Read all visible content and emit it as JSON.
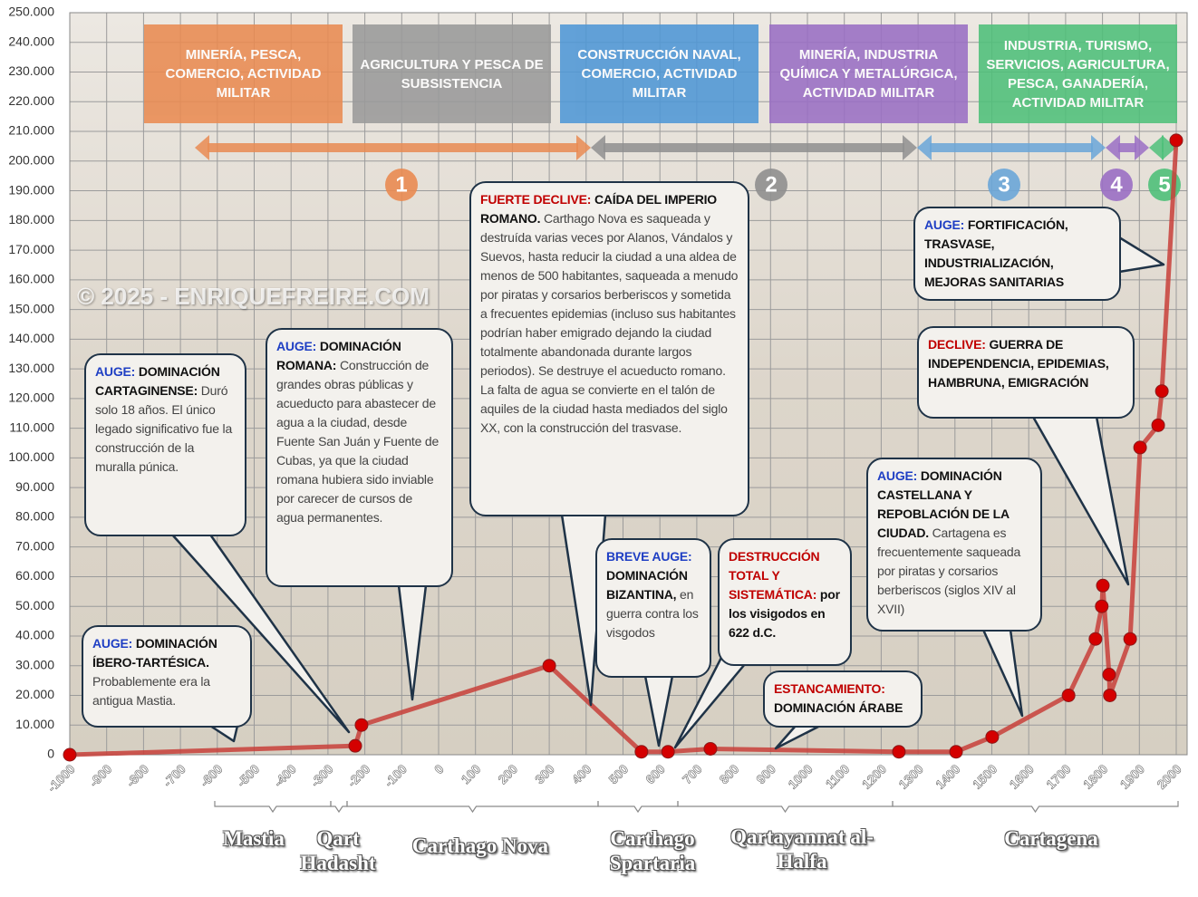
{
  "chart_data": {
    "type": "line",
    "x": [
      -1000,
      -226,
      -209,
      300,
      550,
      622,
      737,
      1248,
      1403,
      1501,
      1708,
      1781,
      1798,
      1801,
      1818,
      1820,
      1875,
      1902,
      1951,
      1961,
      2000
    ],
    "values": [
      0,
      3000,
      10000,
      30000,
      1000,
      1000,
      2000,
      1000,
      1000,
      6000,
      20000,
      39000,
      50000,
      57000,
      27000,
      20000,
      39000,
      103500,
      111000,
      122500,
      207000
    ],
    "color": "#c8403a",
    "xlim": [
      -1000,
      2000
    ],
    "xticks": [
      -1000,
      -900,
      -800,
      -700,
      -600,
      -500,
      -400,
      -300,
      -200,
      -100,
      0,
      100,
      200,
      300,
      400,
      500,
      600,
      700,
      800,
      900,
      1000,
      1100,
      1200,
      1300,
      1400,
      1500,
      1600,
      1700,
      1800,
      1900,
      2000
    ],
    "ylim": [
      0,
      250000
    ],
    "yticks": [
      0,
      {
        "value": 10000,
        "label": "10.000"
      },
      {
        "value": 20000,
        "label": "20.000"
      },
      {
        "value": 30000,
        "label": "30.000"
      },
      {
        "value": 40000,
        "label": "40.000"
      },
      {
        "value": 50000,
        "label": "50.000"
      },
      {
        "value": 60000,
        "label": "60.000"
      },
      {
        "value": 70000,
        "label": "70.000"
      },
      {
        "value": 80000,
        "label": "80.000"
      },
      {
        "value": 90000,
        "label": "90.000"
      },
      {
        "value": 100000,
        "label": "100.000"
      },
      {
        "value": 110000,
        "label": "110.000"
      },
      {
        "value": 120000,
        "label": "120.000"
      },
      {
        "value": 130000,
        "label": "130.000"
      },
      {
        "value": 140000,
        "label": "140.000"
      },
      {
        "value": 150000,
        "label": "150.000"
      },
      {
        "value": 160000,
        "label": "160.000"
      },
      {
        "value": 170000,
        "label": "170.000"
      },
      {
        "value": 180000,
        "label": "180.000"
      },
      {
        "value": 190000,
        "label": "190.000"
      },
      {
        "value": 200000,
        "label": "200.000"
      },
      {
        "value": 210000,
        "label": "210.000"
      },
      {
        "value": 220000,
        "label": "220.000"
      },
      {
        "value": 230000,
        "label": "230.000"
      },
      {
        "value": 240000,
        "label": "240.000"
      },
      {
        "value": 250000,
        "label": "250.000"
      }
    ],
    "grid": true
  },
  "activities": [
    {
      "label": "MINERÍA, PESCA, COMERCIO, ACTIVIDAD MILITAR",
      "color": "#e98b52"
    },
    {
      "label": "AGRICULTURA Y PESCA DE SUBSISTENCIA",
      "color": "#9a9a9a"
    },
    {
      "label": "CONSTRUCCIÓN NAVAL, COMERCIO, ACTIVIDAD MILITAR",
      "color": "#4f97d6"
    },
    {
      "label": "MINERÍA, INDUSTRIA QUÍMICA Y METALÚRGICA, ACTIVIDAD MILITAR",
      "color": "#9a6fc4"
    },
    {
      "label": "INDUSTRIA, TURISMO, SERVICIOS, AGRICULTURA, PESCA, GANADERÍA, ACTIVIDAD MILITAR",
      "color": "#4fc07a"
    }
  ],
  "phases": [
    {
      "label": "1",
      "color": "#e98b52"
    },
    {
      "label": "2",
      "color": "#8f8f8f"
    },
    {
      "label": "3",
      "color": "#6aa6d8"
    },
    {
      "label": "4",
      "color": "#9a6fc4"
    },
    {
      "label": "5",
      "color": "#4fc07a"
    }
  ],
  "annotations": [
    {
      "label": "AUGE:",
      "color": "#1f3fc4",
      "title": "DOMINACIÓN ÍBERO-TARTÉSICA.",
      "text": "Probablemente era la antigua Mastia."
    },
    {
      "label": "AUGE:",
      "color": "#1f3fc4",
      "title": "DOMINACIÓN CARTAGINENSE:",
      "text": "Duró solo 18 años. El único legado significativo fue la construcción de la muralla púnica."
    },
    {
      "label": "AUGE:",
      "color": "#1f3fc4",
      "title": "DOMINACIÓN ROMANA:",
      "text": "Construcción de grandes obras públicas y acueducto para abastecer de agua a la ciudad, desde Fuente San Juán y Fuente de Cubas, ya que la ciudad romana hubiera sido inviable por carecer de cursos de agua permanentes."
    },
    {
      "label": "FUERTE DECLIVE:",
      "color": "#c00000",
      "title": "CAÍDA DEL IMPERIO ROMANO.",
      "text": "Carthago Nova es saqueada y destruída varias veces por Alanos, Vándalos y Suevos, hasta reducir la ciudad a una aldea de menos de 500 habitantes, saqueada a menudo por piratas y corsarios berberiscos y sometida a frecuentes epidemias (incluso sus habitantes podrían haber emigrado dejando la ciudad totalmente abandonada durante largos periodos). Se destruye el acueducto romano. La falta de agua se convierte en el talón de aquiles de la ciudad hasta mediados del siglo XX, con la construcción del trasvase."
    },
    {
      "label": "BREVE AUGE:",
      "color": "#1f3fc4",
      "title": "DOMINACIÓN BIZANTINA,",
      "text": "en guerra contra los visgodos"
    },
    {
      "label": "DESTRUCCIÓN TOTAL Y SISTEMÁTICA:",
      "color": "#c00000",
      "title": "por los visigodos en 622 d.C."
    },
    {
      "label": "ESTANCAMIENTO:",
      "color": "#c00000",
      "title": "DOMINACIÓN ÁRABE"
    },
    {
      "label": "AUGE:",
      "color": "#1f3fc4",
      "title": "DOMINACIÓN CASTELLANA Y REPOBLACIÓN DE LA CIUDAD.",
      "text": "Cartagena es frecuentemente saqueada por piratas y corsarios berberiscos (siglos XIV al XVII)"
    },
    {
      "label": "DECLIVE:",
      "color": "#c00000",
      "title": "GUERRA DE INDEPENDENCIA, EPIDEMIAS, HAMBRUNA, EMIGRACIÓN"
    },
    {
      "label": "AUGE:",
      "color": "#1f3fc4",
      "title": "FORTIFICACIÓN, TRASVASE, INDUSTRIALIZACIÓN, MEJORAS SANITARIAS"
    }
  ],
  "periods": [
    "Mastia",
    "Qart Hadasht",
    "Carthago Nova",
    "Carthago Spartaria",
    "Qartayannat al-Halfa",
    "Cartagena"
  ],
  "watermark": "© 2025 - ENRIQUEFREIRE.COM"
}
